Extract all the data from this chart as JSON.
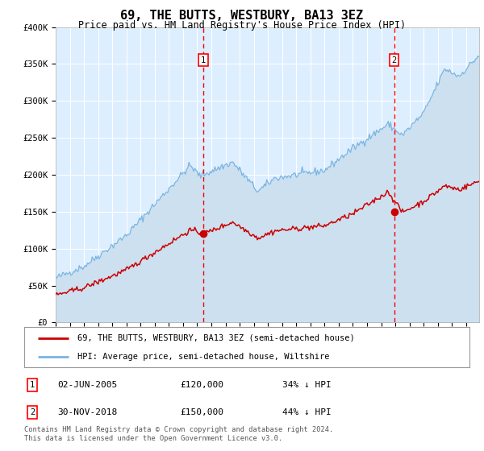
{
  "title": "69, THE BUTTS, WESTBURY, BA13 3EZ",
  "subtitle": "Price paid vs. HM Land Registry's House Price Index (HPI)",
  "background_color": "#ffffff",
  "plot_bg_color": "#ddeeff",
  "grid_color": "#ffffff",
  "hpi_color": "#7ab4e0",
  "price_color": "#cc0000",
  "ylim": [
    0,
    400000
  ],
  "yticks": [
    0,
    50000,
    100000,
    150000,
    200000,
    250000,
    300000,
    350000,
    400000
  ],
  "ytick_labels": [
    "£0",
    "£50K",
    "£100K",
    "£150K",
    "£200K",
    "£250K",
    "£300K",
    "£350K",
    "£400K"
  ],
  "transaction1_date": 2005.42,
  "transaction1_price": 120000,
  "transaction2_date": 2018.92,
  "transaction2_price": 150000,
  "legend_line1": "69, THE BUTTS, WESTBURY, BA13 3EZ (semi-detached house)",
  "legend_line2": "HPI: Average price, semi-detached house, Wiltshire",
  "table_row1": [
    "1",
    "02-JUN-2005",
    "£120,000",
    "34% ↓ HPI"
  ],
  "table_row2": [
    "2",
    "30-NOV-2018",
    "£150,000",
    "44% ↓ HPI"
  ],
  "footer": "Contains HM Land Registry data © Crown copyright and database right 2024.\nThis data is licensed under the Open Government Licence v3.0."
}
